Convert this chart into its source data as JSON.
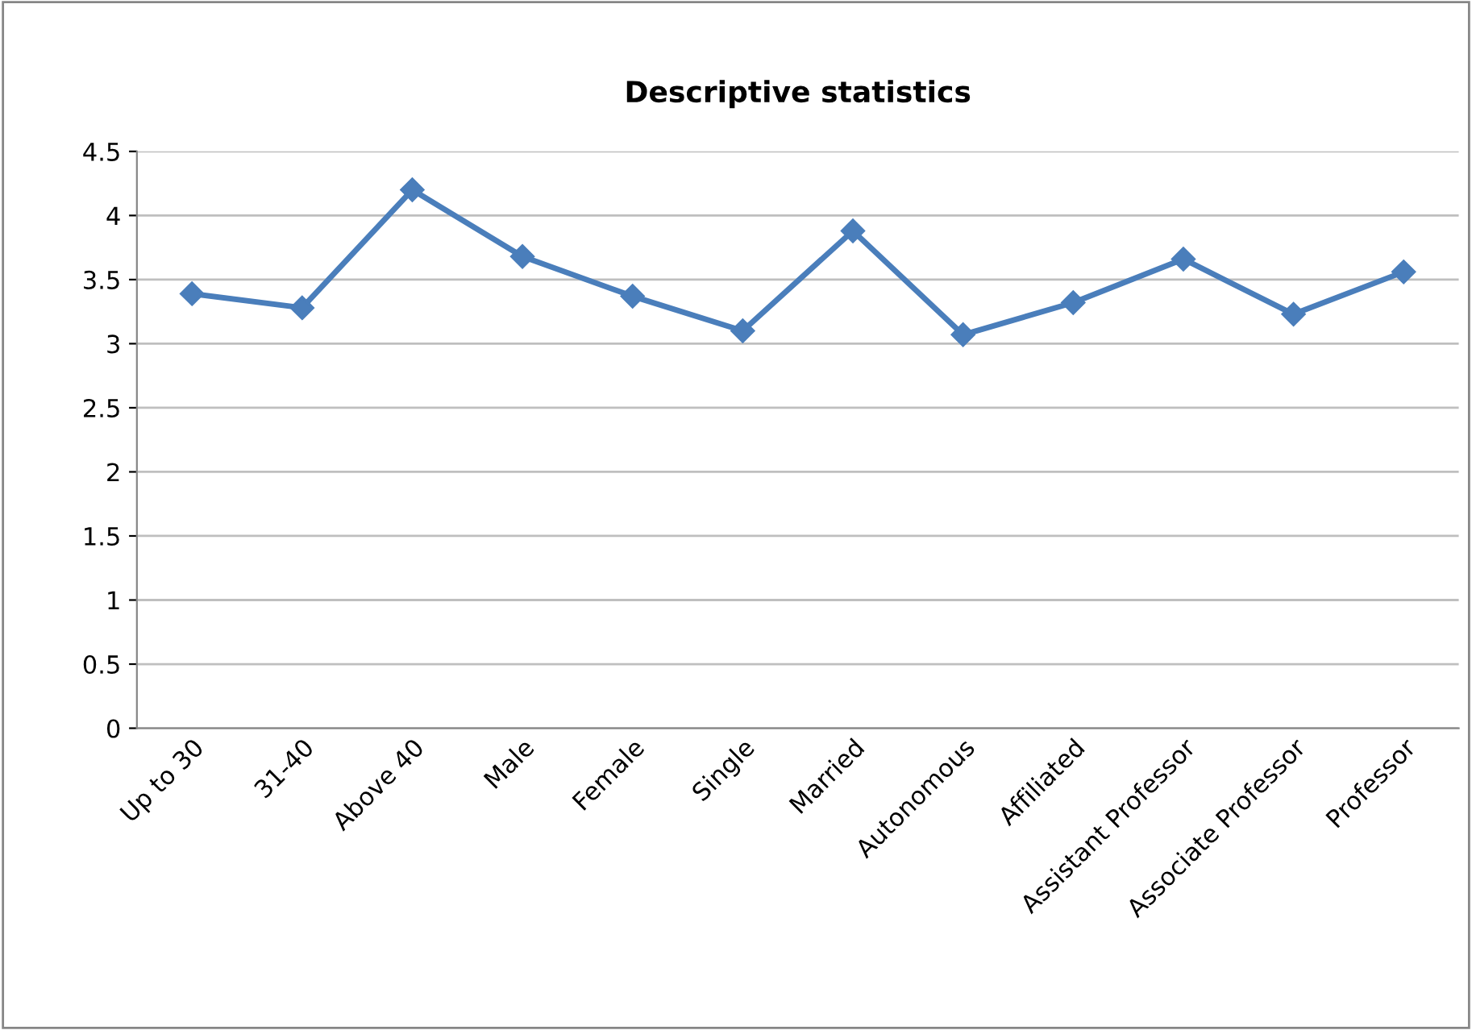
{
  "chart_data": {
    "type": "line",
    "title": "Descriptive statistics",
    "categories": [
      "Up to 30",
      "31-40",
      "Above 40",
      "Male",
      "Female",
      "Single",
      "Married",
      "Autonomous",
      "Affiliated",
      "Assistant Professor",
      "Associate Professor",
      "Professor"
    ],
    "series": [
      {
        "color": "#4a7ebb",
        "values": [
          3.39,
          3.28,
          4.2,
          3.68,
          3.37,
          3.1,
          3.88,
          3.07,
          3.32,
          3.66,
          3.23,
          3.56
        ]
      }
    ],
    "ylim": [
      0,
      4.5
    ],
    "yticks": [
      0,
      0.5,
      1,
      1.5,
      2,
      2.5,
      3,
      3.5,
      4,
      4.5
    ],
    "grid": "y",
    "marker": "diamond",
    "line_style": "solid"
  }
}
